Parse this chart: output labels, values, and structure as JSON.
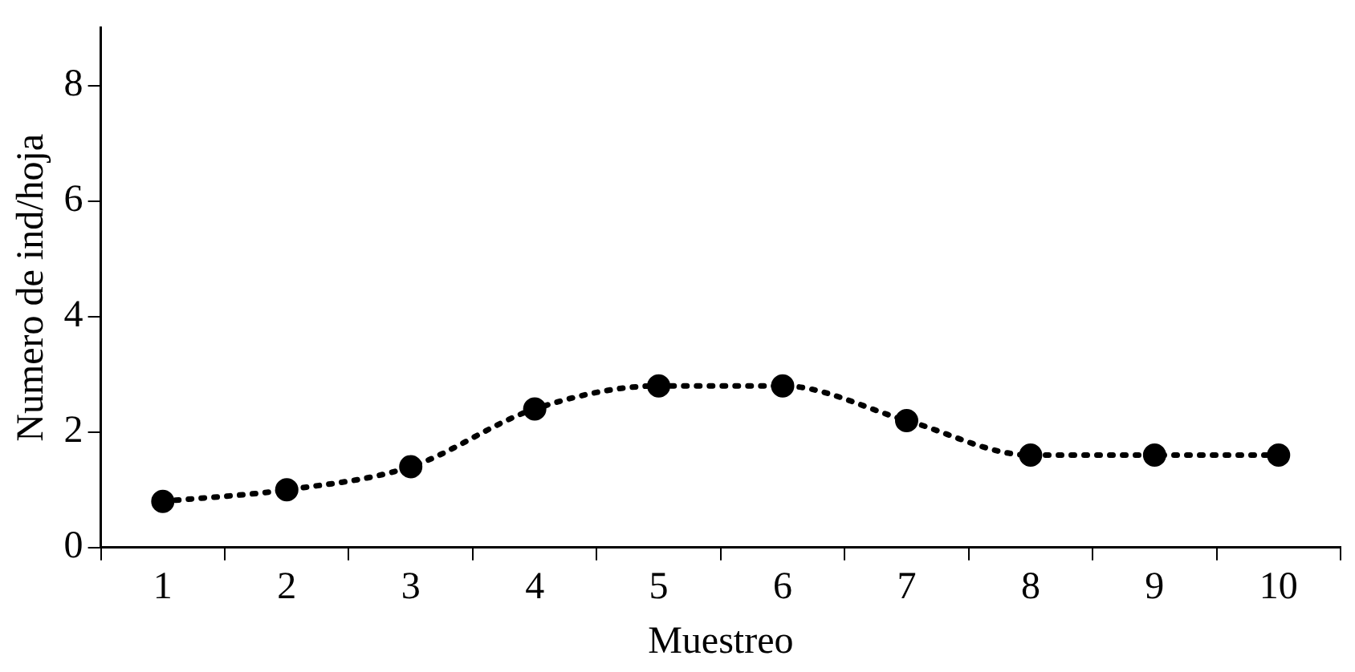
{
  "chart_data": {
    "type": "line",
    "xlabel": "Muestreo",
    "ylabel": "Numero de ind/hoja",
    "categories": [
      "1",
      "2",
      "3",
      "4",
      "5",
      "6",
      "7",
      "8",
      "9",
      "10"
    ],
    "series": [
      {
        "color": "#000000",
        "values": [
          0.8,
          1.0,
          1.4,
          2.4,
          2.8,
          2.8,
          2.2,
          1.6,
          1.6,
          1.6
        ]
      }
    ],
    "ylim": [
      0,
      9
    ],
    "yticks": [
      0,
      2,
      4,
      6,
      8
    ],
    "grid": false,
    "legend": false,
    "marker": "circle",
    "line_style": "dotted"
  }
}
